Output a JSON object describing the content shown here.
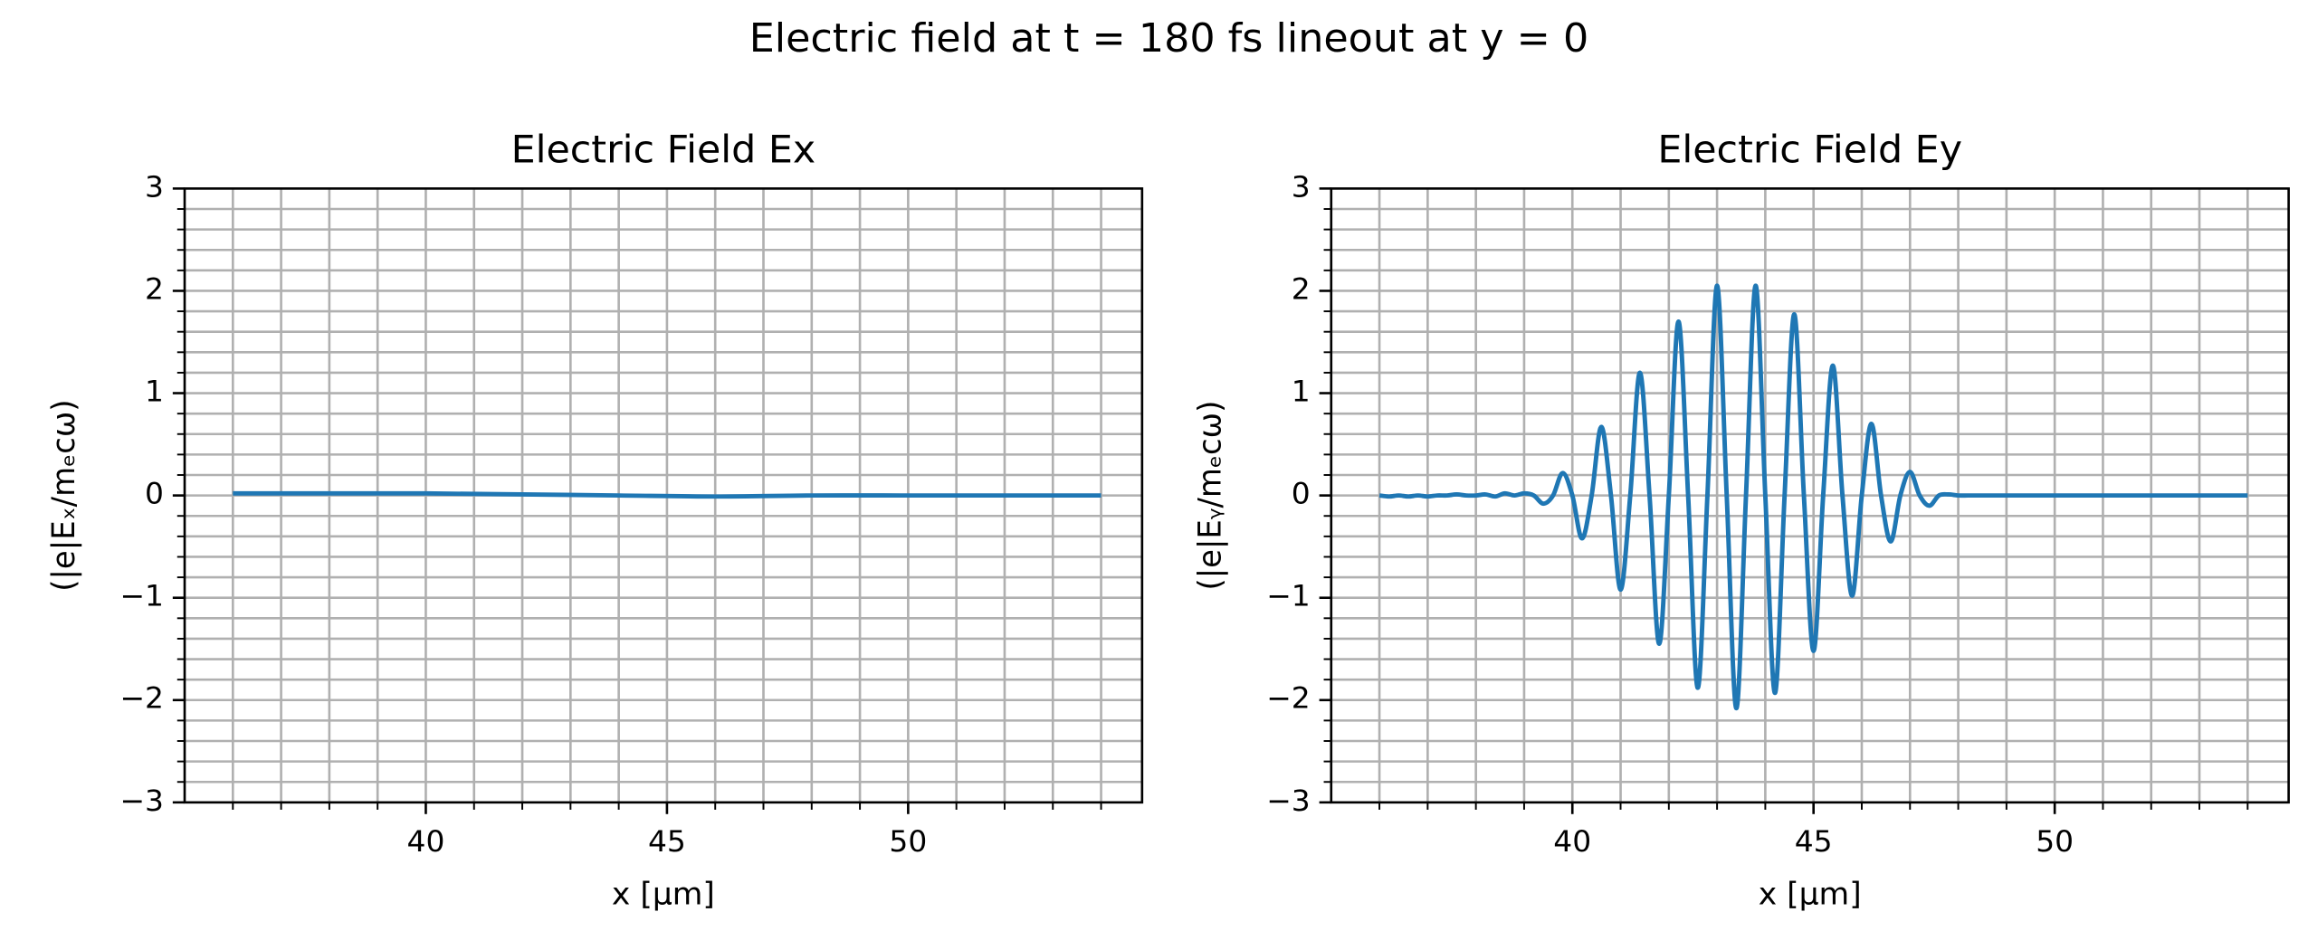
{
  "title": "Electric field at t = 180 fs lineout at y = 0",
  "chart_data": [
    {
      "type": "line",
      "title": "Electric Field Ex",
      "xlabel": "x [µm]",
      "ylabel": "(|e|Eₓ/mₑcω)",
      "xlim": [
        35.0,
        54.85
      ],
      "ylim": [
        -3,
        3
      ],
      "xticks": [
        40,
        45,
        50
      ],
      "yticks": [
        {
          "value": -3,
          "label": "−3"
        },
        {
          "value": -2,
          "label": "−2"
        },
        {
          "value": -1,
          "label": "−1"
        },
        0,
        1,
        2,
        3
      ],
      "x_minor_ticks": [
        36,
        37,
        38,
        39,
        40,
        41,
        42,
        43,
        44,
        45,
        46,
        47,
        48,
        49,
        50,
        51,
        52,
        53,
        54
      ],
      "y_minor_ticks": [
        -3,
        -2.8,
        -2.6,
        -2.4,
        -2.2,
        -2,
        -1.8,
        -1.6,
        -1.4,
        -1.2,
        -1,
        -0.8,
        -0.6,
        -0.4,
        -0.2,
        0,
        0.2,
        0.4,
        0.6,
        0.8,
        1,
        1.2,
        1.4,
        1.6,
        1.8,
        2,
        2.2,
        2.4,
        2.6,
        2.8,
        3
      ],
      "grid": true,
      "x": [
        36,
        38,
        40,
        42,
        44,
        46,
        48,
        50,
        52,
        54
      ],
      "series": [
        {
          "color": "#1f77b4",
          "values": [
            0.02,
            0.02,
            0.02,
            0.01,
            0,
            -0.01,
            0,
            0,
            0,
            0
          ]
        }
      ]
    },
    {
      "type": "line",
      "title": "Electric Field Ey",
      "xlabel": "x [µm]",
      "ylabel": "(|e|Eᵧ/mₑcω)",
      "xlim": [
        35.0,
        54.85
      ],
      "ylim": [
        -3,
        3
      ],
      "xticks": [
        40,
        45,
        50
      ],
      "yticks": [
        {
          "value": -3,
          "label": "−3"
        },
        {
          "value": -2,
          "label": "−2"
        },
        {
          "value": -1,
          "label": "−1"
        },
        0,
        1,
        2,
        3
      ],
      "x_minor_ticks": [
        36,
        37,
        38,
        39,
        40,
        41,
        42,
        43,
        44,
        45,
        46,
        47,
        48,
        49,
        50,
        51,
        52,
        53,
        54
      ],
      "y_minor_ticks": [
        -3,
        -2.8,
        -2.6,
        -2.4,
        -2.2,
        -2,
        -1.8,
        -1.6,
        -1.4,
        -1.2,
        -1,
        -0.8,
        -0.6,
        -0.4,
        -0.2,
        0,
        0.2,
        0.4,
        0.6,
        0.8,
        1,
        1.2,
        1.4,
        1.6,
        1.8,
        2,
        2.2,
        2.4,
        2.6,
        2.8,
        3
      ],
      "grid": true,
      "x": [
        36,
        36.2,
        36.4,
        36.6,
        36.8,
        37,
        37.2,
        37.4,
        37.6,
        37.8,
        38,
        38.2,
        38.4,
        38.6,
        38.8,
        39,
        39.2,
        39.4,
        39.6,
        39.8,
        40,
        40.2,
        40.4,
        40.6,
        40.8,
        41,
        41.2,
        41.4,
        41.6,
        41.8,
        42,
        42.2,
        42.4,
        42.6,
        42.8,
        43,
        43.2,
        43.4,
        43.6,
        43.8,
        44,
        44.2,
        44.4,
        44.6,
        44.8,
        45,
        45.2,
        45.4,
        45.6,
        45.8,
        46,
        46.2,
        46.4,
        46.6,
        46.8,
        47,
        47.2,
        47.4,
        47.6,
        47.8,
        48,
        48.2,
        48.4,
        48.6,
        48.8,
        49,
        49.2,
        49.4,
        49.6,
        49.8,
        50,
        50.2,
        50.4,
        50.6,
        50.8,
        51,
        51.2,
        51.4,
        51.6,
        51.8,
        52,
        52.2,
        52.4,
        52.6,
        52.8,
        53,
        53.2,
        53.4,
        53.6,
        53.8,
        54
      ],
      "series": [
        {
          "color": "#1f77b4",
          "values": [
            0,
            -0.01,
            0,
            -0.01,
            0,
            -0.01,
            0,
            0,
            0.01,
            0,
            0,
            0.01,
            -0.01,
            0.02,
            0,
            0.02,
            0,
            -0.08,
            0,
            0.22,
            0,
            -0.42,
            0,
            0.67,
            0,
            -0.92,
            0,
            1.2,
            0,
            -1.45,
            0,
            1.7,
            0,
            -1.88,
            0,
            2.05,
            0,
            -2.08,
            0,
            2.05,
            0,
            -1.93,
            0,
            1.77,
            0,
            -1.52,
            0,
            1.27,
            0,
            -0.98,
            0,
            0.7,
            0,
            -0.45,
            0,
            0.23,
            0,
            -0.1,
            0,
            0.01,
            0,
            0,
            0,
            0,
            0,
            0,
            0,
            0,
            0,
            0,
            0,
            0,
            0,
            0,
            0,
            0,
            0,
            0,
            0,
            0,
            0,
            0,
            0,
            0,
            0,
            0,
            0,
            0,
            0,
            0,
            0
          ]
        }
      ]
    }
  ]
}
